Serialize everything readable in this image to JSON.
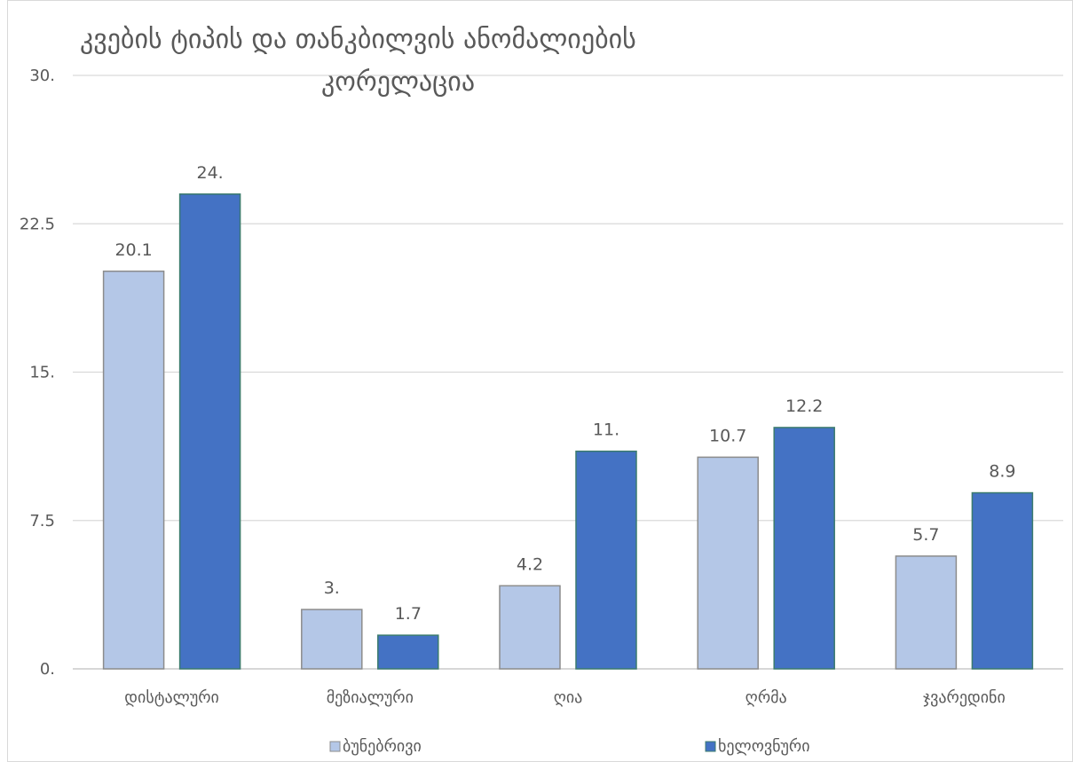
{
  "chart_data": {
    "type": "bar",
    "title_lines": [
      "კვების ტიპის და თანკბილვის ანომალიების",
      "კორელაცია"
    ],
    "categories": [
      "დისტალური",
      "მეზიალური",
      "ღია",
      "ღრმა",
      "ჯვარედინი"
    ],
    "series": [
      {
        "name": "ბუნებრივი",
        "color": "#b4c7e7",
        "values": [
          20.1,
          3.0,
          4.2,
          10.7,
          5.7
        ],
        "labels": [
          "20.1",
          "3.",
          "4.2",
          "10.7",
          "5.7"
        ]
      },
      {
        "name": "ხელოვნური",
        "color": "#4472c4",
        "values": [
          24.0,
          1.7,
          11.0,
          12.2,
          8.9
        ],
        "labels": [
          "24.",
          "1.7",
          "11.",
          "12.2",
          "8.9"
        ]
      }
    ],
    "ylim": [
      0,
      30
    ],
    "yticks": [
      0,
      7.5,
      15,
      22.5,
      30
    ],
    "ytick_labels": [
      "0.",
      "7.5",
      "15.",
      "22.5",
      "30."
    ],
    "xlabel": "",
    "ylabel": "",
    "grid": true,
    "legend_position": "bottom"
  }
}
